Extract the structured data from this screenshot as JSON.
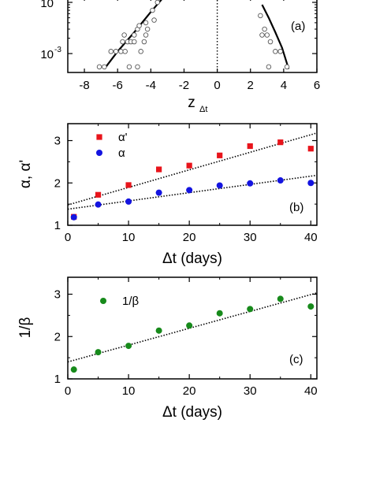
{
  "chart_data": [
    {
      "id": "a",
      "type": "scatter",
      "panel_label": "(a)",
      "xlabel": "z",
      "xlabel_sub": "Δt",
      "ylabel": "",
      "xlim": [
        -9,
        6
      ],
      "log_y": true,
      "x_ticks": [
        "-8",
        "-6",
        "-4",
        "-2",
        "0",
        "2",
        "4",
        "6"
      ],
      "y_tick_labels": [
        {
          "base": "10",
          "exp": "-3"
        },
        {
          "base": "10",
          "exp": ""
        }
      ],
      "vertical_reference_line_x": 0,
      "series": [
        {
          "kind": "markers",
          "marker": "open-circle",
          "color": "#555555",
          "points": [
            [
              -7.1,
              0.00055
            ],
            [
              -6.8,
              0.00055
            ],
            [
              -5.3,
              0.00055
            ],
            [
              -4.8,
              0.00055
            ],
            [
              -6.4,
              0.0011
            ],
            [
              -6.1,
              0.0011
            ],
            [
              -5.8,
              0.0011
            ],
            [
              -5.55,
              0.0011
            ],
            [
              -4.6,
              0.0011
            ],
            [
              -5.7,
              0.0017
            ],
            [
              -5.4,
              0.0017
            ],
            [
              -5.2,
              0.0017
            ],
            [
              -5.0,
              0.0017
            ],
            [
              -4.4,
              0.0017
            ],
            [
              -5.6,
              0.0023
            ],
            [
              -5.0,
              0.0023
            ],
            [
              -4.3,
              0.0023
            ],
            [
              -4.8,
              0.003
            ],
            [
              -4.2,
              0.003
            ],
            [
              -4.7,
              0.0035
            ],
            [
              -4.3,
              0.004
            ],
            [
              -3.8,
              0.0045
            ],
            [
              -3.9,
              0.007
            ],
            [
              -3.6,
              0.01
            ],
            [
              -3.5,
              0.012
            ],
            [
              2.6,
              0.0055
            ],
            [
              2.85,
              0.003
            ],
            [
              2.7,
              0.0023
            ],
            [
              3.0,
              0.0023
            ],
            [
              3.2,
              0.0017
            ],
            [
              3.5,
              0.0011
            ],
            [
              3.8,
              0.0011
            ],
            [
              3.1,
              0.00055
            ],
            [
              4.2,
              0.00055
            ]
          ]
        },
        {
          "kind": "line",
          "color": "#000000",
          "left": [
            [
              -6.8,
              0.0005
            ],
            [
              -6.0,
              0.0011
            ],
            [
              -5.0,
              0.0026
            ],
            [
              -4.0,
              0.0065
            ],
            [
              -3.2,
              0.013
            ]
          ],
          "right": [
            [
              2.7,
              0.009
            ],
            [
              3.1,
              0.005
            ],
            [
              3.5,
              0.0026
            ],
            [
              3.9,
              0.0013
            ],
            [
              4.3,
              0.0005
            ]
          ]
        }
      ]
    },
    {
      "id": "b",
      "type": "scatter",
      "panel_label": "(b)",
      "xlabel": "Δt (days)",
      "ylabel": "α, α'",
      "xlim": [
        0,
        41
      ],
      "ylim": [
        1,
        3.4
      ],
      "x_ticks": [
        0,
        10,
        20,
        30,
        40
      ],
      "y_ticks": [
        1,
        2,
        3
      ],
      "series": [
        {
          "name": "α'",
          "marker": "square",
          "color": "#e8141b",
          "x": [
            1,
            5,
            10,
            15,
            20,
            25,
            30,
            35,
            40
          ],
          "y": [
            1.2,
            1.72,
            1.95,
            2.32,
            2.41,
            2.65,
            2.87,
            2.96,
            2.81
          ],
          "fit": {
            "x": [
              0,
              41
            ],
            "y": [
              1.48,
              3.18
            ]
          }
        },
        {
          "name": "α",
          "marker": "circle",
          "color": "#1414e0",
          "x": [
            1,
            5,
            10,
            15,
            20,
            25,
            30,
            35,
            40
          ],
          "y": [
            1.19,
            1.49,
            1.56,
            1.77,
            1.83,
            1.94,
            1.99,
            2.06,
            2.0
          ],
          "fit": {
            "x": [
              0,
              41
            ],
            "y": [
              1.38,
              2.18
            ]
          }
        }
      ]
    },
    {
      "id": "c",
      "type": "scatter",
      "panel_label": "(c)",
      "xlabel": "Δt (days)",
      "ylabel": "1/β",
      "xlim": [
        0,
        41
      ],
      "ylim": [
        1,
        3.4
      ],
      "x_ticks": [
        0,
        10,
        20,
        30,
        40
      ],
      "y_ticks": [
        1,
        2,
        3
      ],
      "series": [
        {
          "name": "1/β",
          "marker": "circle",
          "color": "#178a1b",
          "x": [
            1,
            5,
            10,
            15,
            20,
            25,
            30,
            35,
            40
          ],
          "y": [
            1.22,
            1.63,
            1.78,
            2.14,
            2.26,
            2.55,
            2.65,
            2.89,
            2.71
          ],
          "fit": {
            "x": [
              0,
              41
            ],
            "y": [
              1.4,
              3.03
            ]
          }
        }
      ]
    }
  ]
}
